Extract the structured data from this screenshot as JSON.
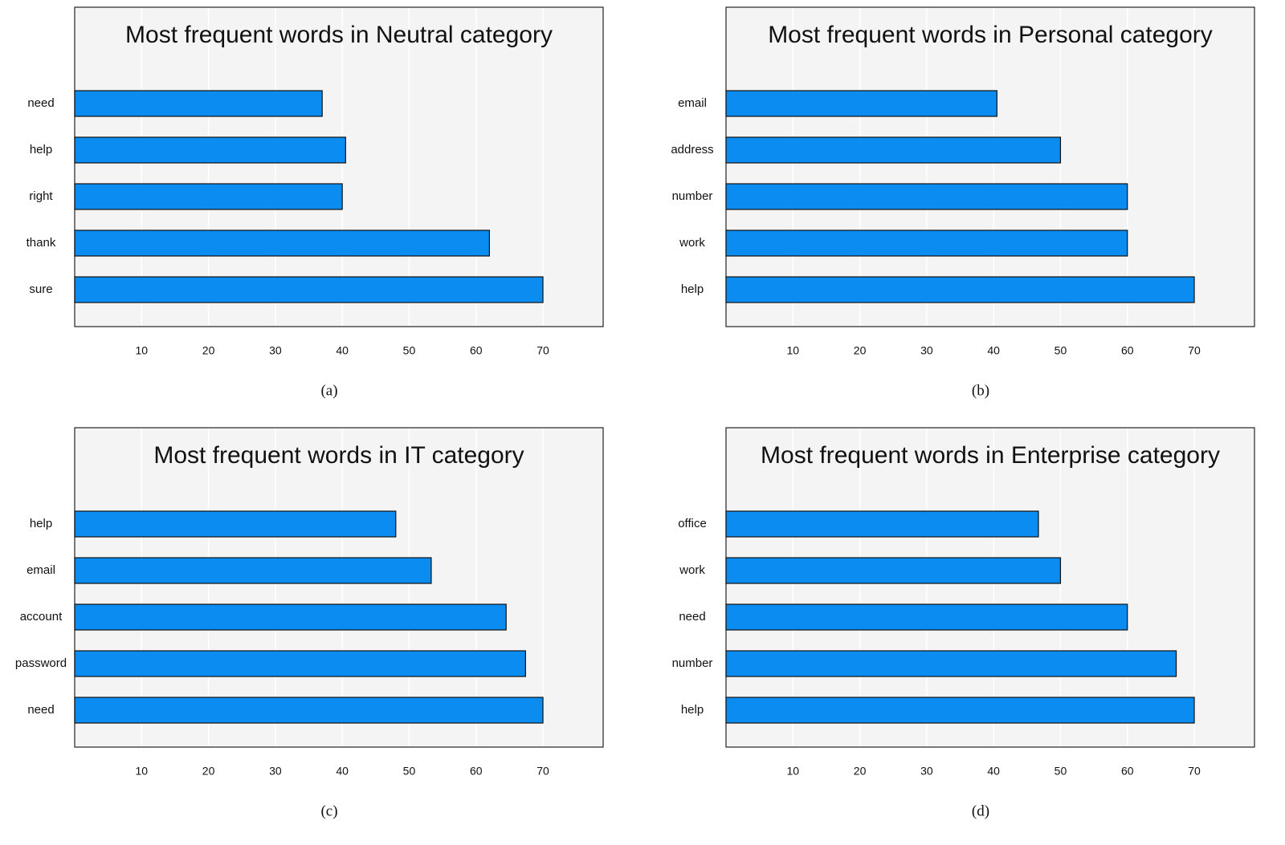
{
  "chart_data": [
    {
      "type": "bar",
      "title": "Most frequent words in Neutral category",
      "caption": "(a)",
      "categories": [
        "need",
        "help",
        "right",
        "thank",
        "sure"
      ],
      "values": [
        37,
        40.5,
        40,
        62,
        70
      ],
      "color": "#0a8cf0",
      "xlim": [
        0,
        79
      ],
      "xticks": [
        10,
        20,
        30,
        40,
        50,
        60,
        70
      ],
      "grid": true
    },
    {
      "type": "bar",
      "title": "Most frequent words in Personal category",
      "caption": "(b)",
      "categories": [
        "email",
        "address",
        "number",
        "work",
        "help"
      ],
      "values": [
        40.5,
        50,
        60,
        60,
        70
      ],
      "color": "#0a8cf0",
      "xlim": [
        0,
        79
      ],
      "xticks": [
        10,
        20,
        30,
        40,
        50,
        60,
        70
      ],
      "grid": true
    },
    {
      "type": "bar",
      "title": "Most frequent words in IT category",
      "caption": "(c)",
      "categories": [
        "help",
        "email",
        "account",
        "password",
        "need"
      ],
      "values": [
        48,
        53.3,
        64.5,
        67.4,
        70
      ],
      "color": "#0a8cf0",
      "xlim": [
        0,
        79
      ],
      "xticks": [
        10,
        20,
        30,
        40,
        50,
        60,
        70
      ],
      "grid": true
    },
    {
      "type": "bar",
      "title": "Most frequent words in Enterprise category",
      "caption": "(d)",
      "categories": [
        "office",
        "work",
        "need",
        "number",
        "help"
      ],
      "values": [
        46.7,
        50,
        60,
        67.3,
        70
      ],
      "color": "#0a8cf0",
      "xlim": [
        0,
        79
      ],
      "xticks": [
        10,
        20,
        30,
        40,
        50,
        60,
        70
      ],
      "grid": true
    }
  ]
}
